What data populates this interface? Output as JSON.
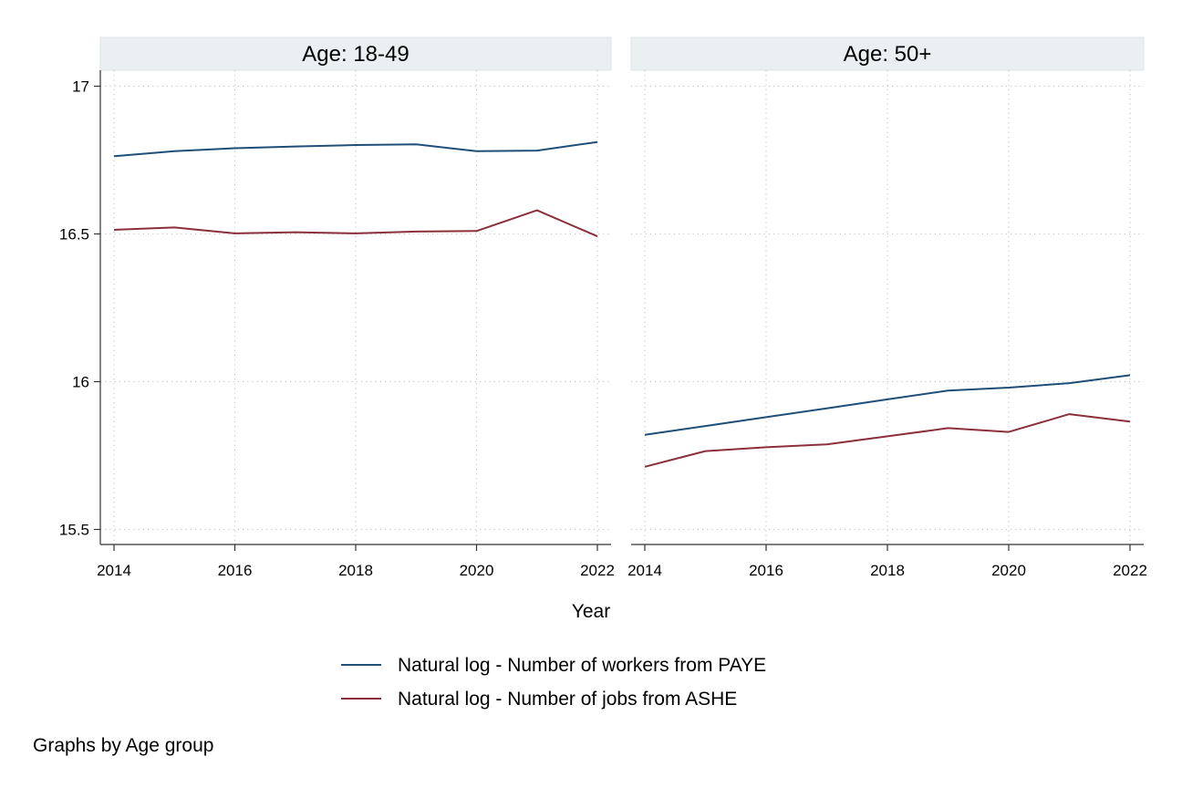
{
  "chart_data": {
    "type": "line",
    "layout": "facets by Age group, 2 panels side by side, shared y axis",
    "grid": true,
    "grid_style": "dotted",
    "x": [
      2014,
      2015,
      2016,
      2017,
      2018,
      2019,
      2020,
      2021,
      2022
    ],
    "xlabel": "Year",
    "xticks": [
      2014,
      2016,
      2018,
      2020,
      2022
    ],
    "xlim": [
      2014,
      2022
    ],
    "ylim": [
      15.5,
      17
    ],
    "yticks": [
      15.5,
      16,
      16.5,
      17
    ],
    "ytick_labels": [
      "15.5",
      "16",
      "16.5",
      "17"
    ],
    "legend": {
      "placement": "bottom-center",
      "entries": [
        {
          "label": "Natural log - Number of workers from PAYE",
          "color": "#1f4e79"
        },
        {
          "label": "Natural log - Number of jobs from ASHE",
          "color": "#8b2f3a"
        }
      ]
    },
    "note": "Graphs by Age group",
    "panels": [
      {
        "title": "Age: 18-49",
        "series": [
          {
            "values": [
              16.763,
              16.78,
              16.79,
              16.796,
              16.801,
              16.803,
              16.78,
              16.782,
              16.811
            ]
          },
          {
            "values": [
              16.514,
              16.522,
              16.502,
              16.506,
              16.502,
              16.508,
              16.51,
              16.58,
              16.492
            ]
          }
        ]
      },
      {
        "title": "Age: 50+",
        "series": [
          {
            "values": [
              15.82,
              15.85,
              15.88,
              15.91,
              15.94,
              15.97,
              15.98,
              15.995,
              16.022
            ]
          },
          {
            "values": [
              15.712,
              15.765,
              15.778,
              15.788,
              15.815,
              15.843,
              15.83,
              15.89,
              15.865
            ]
          }
        ]
      }
    ]
  }
}
